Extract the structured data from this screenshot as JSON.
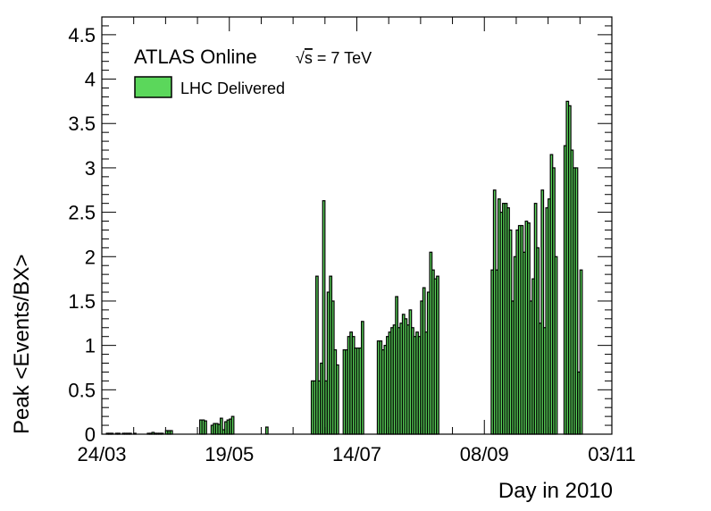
{
  "chart_data": {
    "type": "bar",
    "header": "ATLAS Online",
    "energy": {
      "sqrt_symbol": "√",
      "s": "s",
      "rest": " = 7 TeV"
    },
    "xlabel": "Day in 2010",
    "ylabel": "Peak <Events/BX>",
    "legend": {
      "label": "LHC Delivered",
      "placement": "top-left"
    },
    "fill_color": "#5bd75b",
    "stroke_color": "#000000",
    "grid": false,
    "xlim": [
      0,
      224
    ],
    "ylim": [
      0,
      4.7
    ],
    "x_ticks": [
      {
        "day": 0,
        "label": "24/03"
      },
      {
        "day": 56,
        "label": "19/05"
      },
      {
        "day": 112,
        "label": "14/07"
      },
      {
        "day": 168,
        "label": "08/09"
      },
      {
        "day": 224,
        "label": "03/11"
      }
    ],
    "y_ticks": [
      {
        "value": 0,
        "label": "0"
      },
      {
        "value": 0.5,
        "label": "0.5"
      },
      {
        "value": 1,
        "label": "1"
      },
      {
        "value": 1.5,
        "label": "1.5"
      },
      {
        "value": 2,
        "label": "2"
      },
      {
        "value": 2.5,
        "label": "2.5"
      },
      {
        "value": 3,
        "label": "3"
      },
      {
        "value": 3.5,
        "label": "3.5"
      },
      {
        "value": 4,
        "label": "4"
      },
      {
        "value": 4.5,
        "label": "4.5"
      }
    ],
    "bin_width_days": 1,
    "bins": [
      [
        2,
        0.01
      ],
      [
        3,
        0.01
      ],
      [
        4,
        0.01
      ],
      [
        6,
        0.01
      ],
      [
        7,
        0.01
      ],
      [
        9,
        0.01
      ],
      [
        10,
        0.01
      ],
      [
        11,
        0.01
      ],
      [
        12,
        0.01
      ],
      [
        14,
        0.01
      ],
      [
        20,
        0.01
      ],
      [
        21,
        0.01
      ],
      [
        22,
        0.02
      ],
      [
        23,
        0.01
      ],
      [
        24,
        0.01
      ],
      [
        25,
        0.01
      ],
      [
        26,
        0.01
      ],
      [
        28,
        0.04
      ],
      [
        29,
        0.04
      ],
      [
        30,
        0.04
      ],
      [
        43,
        0.16
      ],
      [
        44,
        0.16
      ],
      [
        45,
        0.15
      ],
      [
        48,
        0.1
      ],
      [
        49,
        0.12
      ],
      [
        50,
        0.12
      ],
      [
        51,
        0.11
      ],
      [
        52,
        0.18
      ],
      [
        53,
        0.05
      ],
      [
        54,
        0.14
      ],
      [
        55,
        0.16
      ],
      [
        56,
        0.17
      ],
      [
        57,
        0.2
      ],
      [
        72,
        0.08
      ],
      [
        92,
        0.6
      ],
      [
        93,
        0.6
      ],
      [
        94,
        1.78
      ],
      [
        95,
        0.6
      ],
      [
        96,
        0.8
      ],
      [
        97,
        2.63
      ],
      [
        98,
        0.6
      ],
      [
        99,
        1.6
      ],
      [
        100,
        1.78
      ],
      [
        101,
        1.5
      ],
      [
        102,
        0.95
      ],
      [
        103,
        0.78
      ],
      [
        106,
        0.95
      ],
      [
        107,
        0.95
      ],
      [
        108,
        1.1
      ],
      [
        109,
        1.15
      ],
      [
        110,
        1.1
      ],
      [
        111,
        0.97
      ],
      [
        112,
        0.97
      ],
      [
        113,
        0.97
      ],
      [
        114,
        1.27
      ],
      [
        121,
        1.05
      ],
      [
        122,
        1.05
      ],
      [
        123,
        0.95
      ],
      [
        124,
        1.0
      ],
      [
        125,
        1.1
      ],
      [
        126,
        1.15
      ],
      [
        127,
        1.2
      ],
      [
        128,
        1.23
      ],
      [
        129,
        1.55
      ],
      [
        130,
        1.2
      ],
      [
        131,
        1.25
      ],
      [
        132,
        1.35
      ],
      [
        133,
        1.3
      ],
      [
        134,
        1.23
      ],
      [
        135,
        1.4
      ],
      [
        136,
        1.2
      ],
      [
        137,
        1.1
      ],
      [
        138,
        1.15
      ],
      [
        139,
        1.1
      ],
      [
        140,
        1.5
      ],
      [
        141,
        1.65
      ],
      [
        142,
        1.15
      ],
      [
        143,
        1.6
      ],
      [
        144,
        2.05
      ],
      [
        145,
        1.85
      ],
      [
        146,
        1.75
      ],
      [
        147,
        1.78
      ],
      [
        171,
        1.85
      ],
      [
        172,
        2.75
      ],
      [
        173,
        1.85
      ],
      [
        174,
        2.65
      ],
      [
        175,
        2.5
      ],
      [
        176,
        2.6
      ],
      [
        177,
        2.6
      ],
      [
        178,
        2.55
      ],
      [
        179,
        2.3
      ],
      [
        180,
        1.5
      ],
      [
        181,
        2.0
      ],
      [
        182,
        2.3
      ],
      [
        183,
        2.35
      ],
      [
        184,
        2.35
      ],
      [
        185,
        2.05
      ],
      [
        186,
        2.4
      ],
      [
        187,
        2.38
      ],
      [
        188,
        1.5
      ],
      [
        189,
        1.75
      ],
      [
        190,
        2.6
      ],
      [
        191,
        2.1
      ],
      [
        192,
        1.25
      ],
      [
        193,
        2.75
      ],
      [
        194,
        1.2
      ],
      [
        195,
        2.55
      ],
      [
        196,
        2.65
      ],
      [
        197,
        3.15
      ],
      [
        198,
        3.0
      ],
      [
        199,
        2.0
      ],
      [
        203,
        3.25
      ],
      [
        204,
        3.75
      ],
      [
        205,
        3.7
      ],
      [
        206,
        3.2
      ],
      [
        207,
        3.0
      ],
      [
        208,
        3.0
      ],
      [
        209,
        0.7
      ],
      [
        210,
        1.85
      ]
    ]
  }
}
